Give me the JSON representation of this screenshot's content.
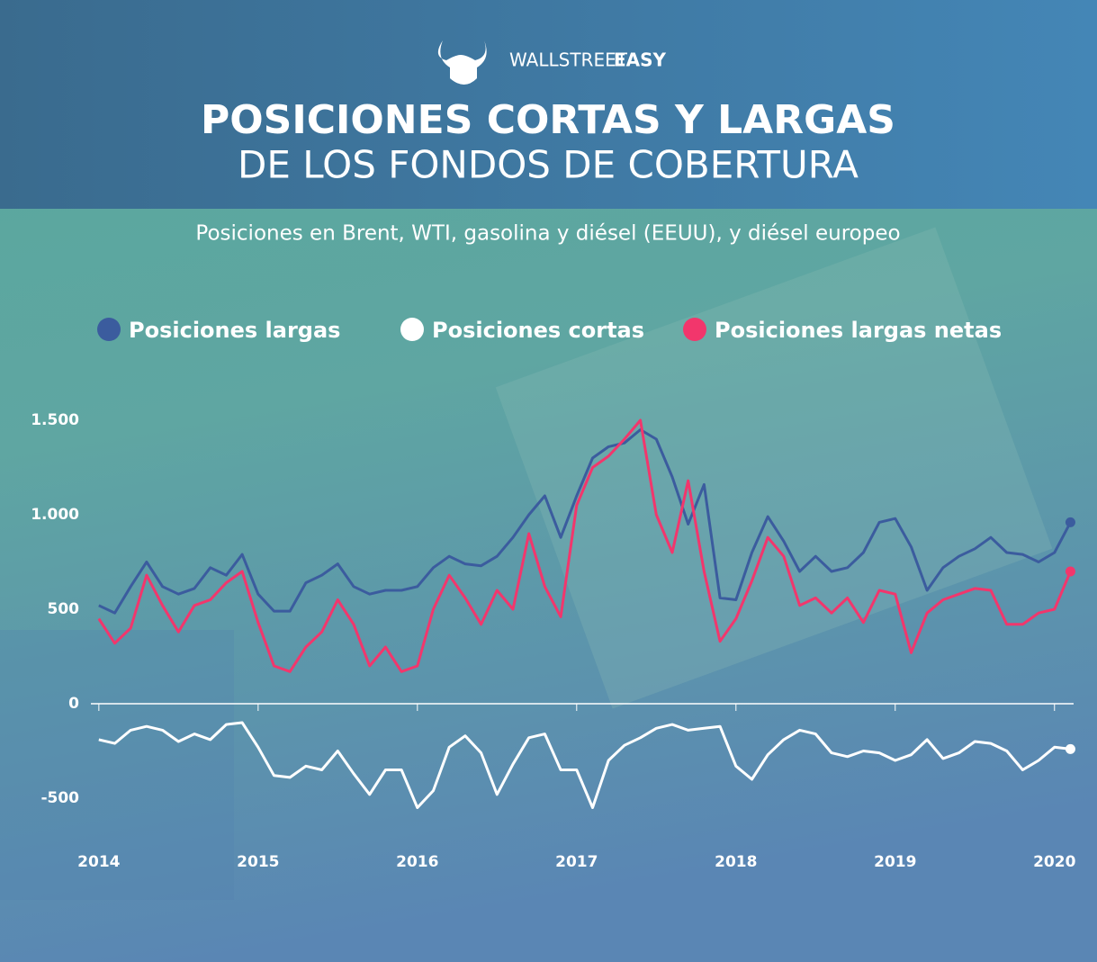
{
  "logo": {
    "light": "WALLSTREET",
    "bold": "EASY"
  },
  "chart_data": {
    "type": "line",
    "title": "POSICIONES CORTAS Y LARGAS",
    "subtitle": "DE LOS FONDOS DE COBERTURA",
    "description": "Posiciones en Brent, WTI, gasolina y diésel (EEUU), y diésel europeo",
    "x": [
      2014.0,
      2014.1,
      2014.2,
      2014.3,
      2014.4,
      2014.5,
      2014.6,
      2014.7,
      2014.8,
      2014.9,
      2015.0,
      2015.1,
      2015.2,
      2015.3,
      2015.4,
      2015.5,
      2015.6,
      2015.7,
      2015.8,
      2015.9,
      2016.0,
      2016.1,
      2016.2,
      2016.3,
      2016.4,
      2016.5,
      2016.6,
      2016.7,
      2016.8,
      2016.9,
      2017.0,
      2017.1,
      2017.2,
      2017.3,
      2017.4,
      2017.5,
      2017.6,
      2017.7,
      2017.8,
      2017.9,
      2018.0,
      2018.1,
      2018.2,
      2018.3,
      2018.4,
      2018.5,
      2018.6,
      2018.7,
      2018.8,
      2018.9,
      2019.0,
      2019.1,
      2019.2,
      2019.3,
      2019.4,
      2019.5,
      2019.6,
      2019.7,
      2019.8,
      2019.9,
      2020.0,
      2020.1
    ],
    "series": [
      {
        "name": "Posiciones largas",
        "color": "#3b5c9e",
        "values": [
          520,
          480,
          620,
          750,
          620,
          580,
          610,
          720,
          680,
          790,
          580,
          490,
          490,
          640,
          680,
          740,
          620,
          580,
          600,
          600,
          620,
          720,
          780,
          740,
          730,
          780,
          880,
          1000,
          1100,
          880,
          1100,
          1300,
          1360,
          1380,
          1450,
          1400,
          1200,
          950,
          1160,
          560,
          550,
          800,
          990,
          860,
          700,
          780,
          700,
          720,
          800,
          960,
          980,
          830,
          600,
          720,
          780,
          820,
          880,
          800,
          790,
          750,
          800,
          960
        ]
      },
      {
        "name": "Posiciones cortas",
        "color": "#ffffff",
        "values": [
          -190,
          -210,
          -140,
          -120,
          -140,
          -200,
          -160,
          -190,
          -110,
          -100,
          -230,
          -380,
          -390,
          -330,
          -350,
          -250,
          -370,
          -480,
          -350,
          -350,
          -550,
          -460,
          -230,
          -170,
          -260,
          -480,
          -320,
          -180,
          -160,
          -350,
          -350,
          -550,
          -300,
          -220,
          -180,
          -130,
          -110,
          -140,
          -130,
          -120,
          -330,
          -400,
          -270,
          -190,
          -140,
          -160,
          -260,
          -280,
          -250,
          -260,
          -300,
          -270,
          -190,
          -290,
          -260,
          -200,
          -210,
          -250,
          -350,
          -300,
          -230,
          -240
        ]
      },
      {
        "name": "Posiciones largas netas",
        "color": "#f2366c",
        "values": [
          450,
          320,
          400,
          680,
          520,
          380,
          520,
          550,
          640,
          700,
          430,
          200,
          170,
          300,
          380,
          550,
          420,
          200,
          300,
          170,
          200,
          500,
          680,
          560,
          420,
          600,
          500,
          900,
          620,
          460,
          1050,
          1250,
          1310,
          1400,
          1500,
          1000,
          800,
          1180,
          700,
          330,
          450,
          650,
          880,
          780,
          520,
          560,
          480,
          560,
          430,
          600,
          580,
          270,
          480,
          550,
          580,
          610,
          600,
          420,
          420,
          480,
          500,
          700
        ]
      }
    ],
    "xlim": [
      2013.95,
      2020.12
    ],
    "xticks": [
      2014,
      2015,
      2016,
      2017,
      2018,
      2019,
      2020
    ],
    "ylim": [
      -700,
      1600
    ],
    "yticks": [
      {
        "value": -500,
        "label": "-500"
      },
      0,
      500,
      {
        "value": 1000,
        "label": "1.000"
      },
      {
        "value": 1500,
        "label": "1.500"
      }
    ]
  }
}
